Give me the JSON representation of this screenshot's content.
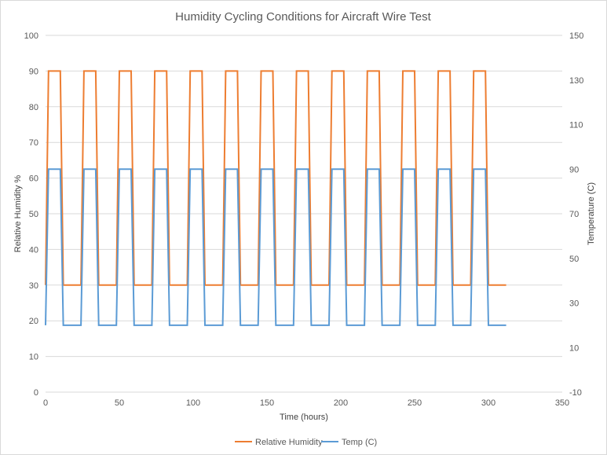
{
  "chart_data": {
    "type": "line",
    "title": "Humidity Cycling Conditions for Aircraft Wire Test",
    "xlabel": "Time (hours)",
    "ylabel": "Relative Humidity %",
    "y2label": "Temperature (C)",
    "xlim": [
      0,
      350
    ],
    "ylim": [
      0,
      100
    ],
    "y2lim": [
      -10,
      150
    ],
    "x_ticks": [
      0,
      50,
      100,
      150,
      200,
      250,
      300,
      350
    ],
    "y_ticks": [
      0,
      10,
      20,
      30,
      40,
      50,
      60,
      70,
      80,
      90,
      100
    ],
    "y2_ticks": [
      -10,
      10,
      30,
      50,
      70,
      90,
      110,
      130,
      150
    ],
    "grid": "horizontal",
    "legend_position": "bottom",
    "cycle": {
      "period_hours": 24,
      "count": 13,
      "end_hours": 312
    },
    "series": [
      {
        "name": "Relative Humidity",
        "axis": "left",
        "color": "#ED7D31",
        "low": 30,
        "high": 90,
        "profile": [
          [
            0,
            30
          ],
          [
            2,
            90
          ],
          [
            10,
            90
          ],
          [
            12,
            30
          ],
          [
            24,
            30
          ]
        ]
      },
      {
        "name": "Temp (C)",
        "axis": "right",
        "color": "#5B9BD5",
        "low": 20,
        "high": 90,
        "profile": [
          [
            0,
            20
          ],
          [
            2,
            90
          ],
          [
            10,
            90
          ],
          [
            12,
            20
          ],
          [
            24,
            20
          ]
        ]
      }
    ]
  }
}
